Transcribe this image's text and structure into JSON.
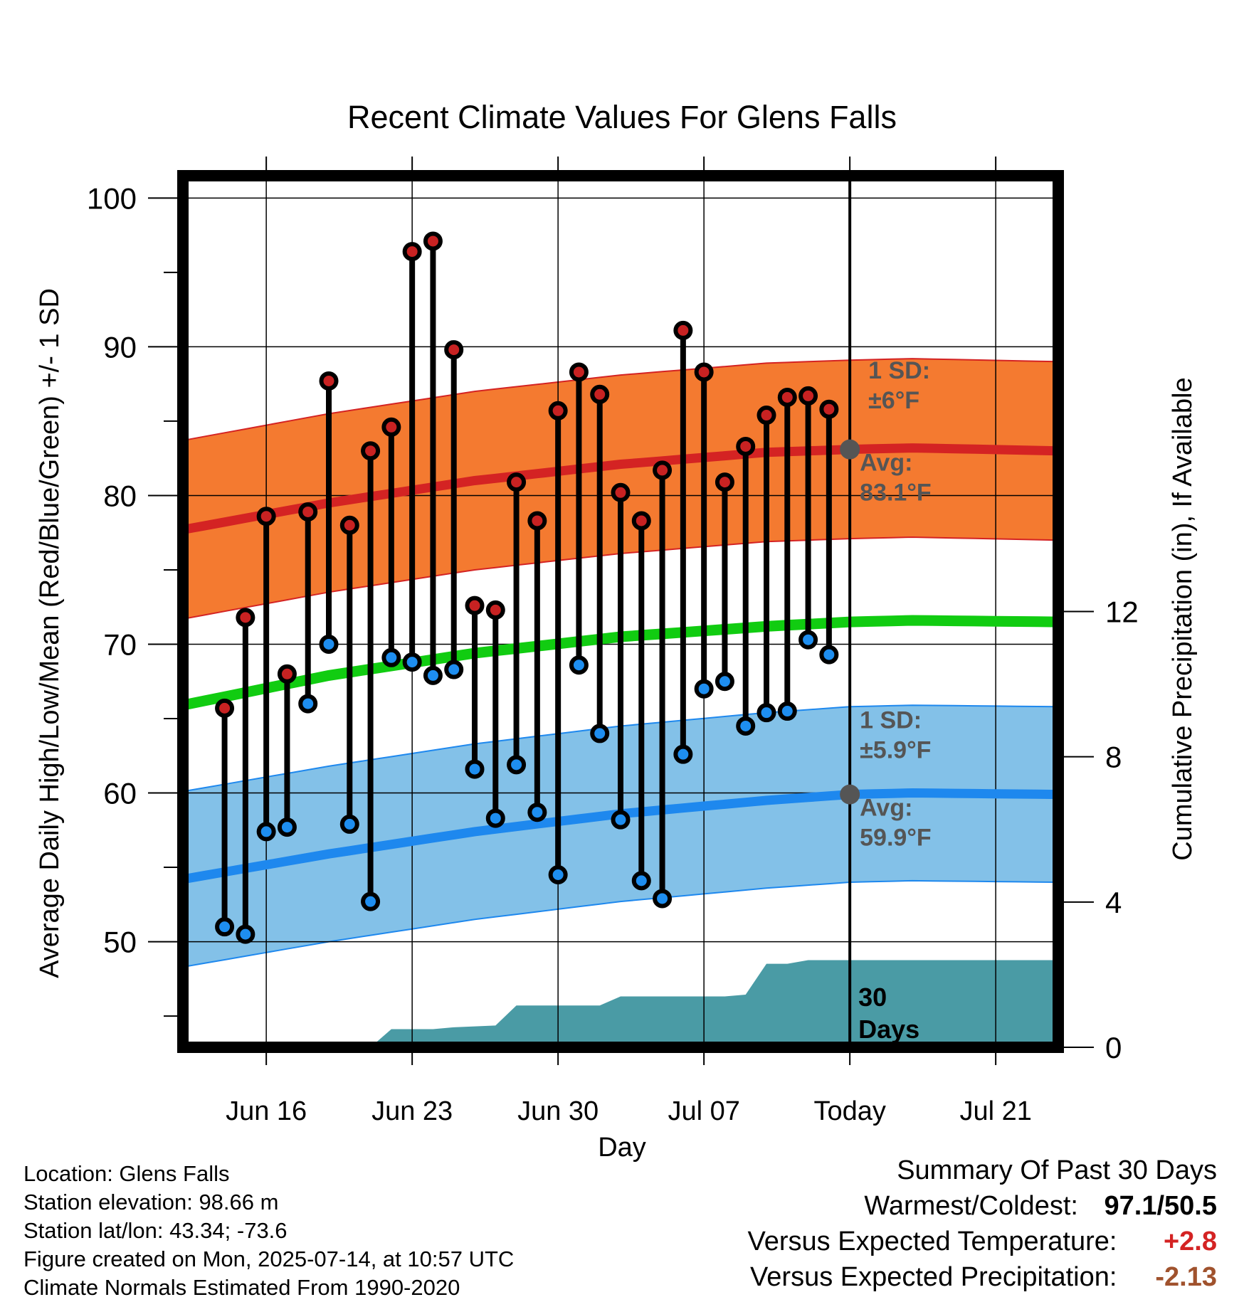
{
  "chart_data": {
    "type": "line",
    "title": "Recent Climate Values For Glens Falls",
    "xlabel": "Day",
    "ylabel": "Average Daily High/Low/Mean (Red/Blue/Green) +/- 1 SD",
    "y2label": "Cumulative Precipitation (in), If Available",
    "ylim": [
      42.9,
      101.5
    ],
    "y_ticks": [
      50,
      60,
      70,
      80,
      90,
      100
    ],
    "y2lim": [
      0,
      24
    ],
    "y2_ticks": [
      0,
      4,
      8,
      12
    ],
    "x_tick_labels": [
      "Jun 16",
      "Jun 23",
      "Jun 30",
      "Jul 07",
      "Today",
      "Jul 21"
    ],
    "x_tick_days": [
      "2025-06-16",
      "2025-06-23",
      "2025-06-30",
      "2025-07-07",
      "2025-07-14",
      "2025-07-21"
    ],
    "xlim": [
      "2025-06-12",
      "2025-07-24"
    ],
    "today": "2025-07-14",
    "grid": true,
    "days": [
      "2025-06-14",
      "2025-06-15",
      "2025-06-16",
      "2025-06-17",
      "2025-06-18",
      "2025-06-19",
      "2025-06-20",
      "2025-06-21",
      "2025-06-22",
      "2025-06-23",
      "2025-06-24",
      "2025-06-25",
      "2025-06-26",
      "2025-06-27",
      "2025-06-28",
      "2025-06-29",
      "2025-06-30",
      "2025-07-01",
      "2025-07-02",
      "2025-07-03",
      "2025-07-04",
      "2025-07-05",
      "2025-07-06",
      "2025-07-07",
      "2025-07-08",
      "2025-07-09",
      "2025-07-10",
      "2025-07-11",
      "2025-07-12",
      "2025-07-13"
    ],
    "highs": [
      65.7,
      71.8,
      78.6,
      68.0,
      78.9,
      87.7,
      78.0,
      83.0,
      84.6,
      96.4,
      97.1,
      89.8,
      72.6,
      72.3,
      80.9,
      78.3,
      85.7,
      88.3,
      86.8,
      80.2,
      78.3,
      81.7,
      91.1,
      88.3,
      80.9,
      83.3,
      85.4,
      86.6,
      86.7,
      85.8
    ],
    "lows": [
      51.0,
      50.5,
      57.4,
      57.7,
      66.0,
      70.0,
      57.9,
      52.7,
      69.1,
      68.8,
      67.9,
      68.3,
      61.6,
      58.3,
      61.9,
      58.7,
      54.5,
      68.6,
      64.0,
      58.2,
      54.1,
      52.9,
      62.6,
      67.0,
      67.5,
      64.5,
      65.4,
      65.5,
      70.3,
      69.3
    ],
    "normals": {
      "days": [
        "2025-06-12",
        "2025-06-19",
        "2025-06-26",
        "2025-07-03",
        "2025-07-10",
        "2025-07-14",
        "2025-07-17",
        "2025-07-24"
      ],
      "high_avg": [
        77.7,
        79.5,
        81.0,
        82.1,
        82.9,
        83.1,
        83.2,
        83.0
      ],
      "low_avg": [
        54.2,
        55.9,
        57.4,
        58.6,
        59.5,
        59.9,
        60.0,
        59.9
      ],
      "mean_avg": [
        65.9,
        67.9,
        69.4,
        70.5,
        71.2,
        71.5,
        71.6,
        71.5
      ],
      "high_sd": 6.0,
      "low_sd": 5.9
    },
    "precip": {
      "days": [
        "2025-06-20",
        "2025-06-21",
        "2025-06-22",
        "2025-06-24",
        "2025-06-25",
        "2025-06-27",
        "2025-06-28",
        "2025-07-02",
        "2025-07-03",
        "2025-07-08",
        "2025-07-09",
        "2025-07-10",
        "2025-07-11",
        "2025-07-12",
        "2025-07-24"
      ],
      "values": [
        0.0,
        0.0,
        0.5,
        0.5,
        0.55,
        0.6,
        1.15,
        1.15,
        1.4,
        1.4,
        1.45,
        2.3,
        2.3,
        2.4,
        2.4
      ]
    },
    "colors": {
      "high_band": "#f47a30",
      "high_line": "#d42323",
      "high_marker": "#c82222",
      "low_band": "#83c1e8",
      "low_line": "#1e88ee",
      "low_marker": "#1e8ef0",
      "mean_line": "#11cc11",
      "precip": "#4a9ba5",
      "annotation": "#555555"
    },
    "annotations": {
      "high_sd": [
        "1 SD:",
        "±6°F"
      ],
      "high_avg": [
        "Avg:",
        "83.1°F"
      ],
      "low_sd": [
        "1 SD:",
        "±5.9°F"
      ],
      "low_avg": [
        "Avg:",
        "59.9°F"
      ],
      "precip": [
        "30",
        "Days"
      ]
    }
  },
  "info": {
    "location": "Location: Glens Falls",
    "elevation": "Station elevation: 98.66 m",
    "latlon": "Station lat/lon: 43.34; -73.6",
    "created": "Figure created on Mon, 2025-07-14, at 10:57 UTC",
    "normals": "Climate Normals Estimated From 1990-2020"
  },
  "summary": {
    "title": "Summary Of Past 30 Days",
    "warm_cold_label": "Warmest/Coldest:",
    "warm_cold_value": "97.1/50.5",
    "temp_label": "Versus Expected Temperature:",
    "temp_value": "+2.8",
    "temp_color": "#d42323",
    "precip_label": "Versus Expected Precipitation:",
    "precip_value": "-2.13",
    "precip_color": "#a0522d"
  }
}
